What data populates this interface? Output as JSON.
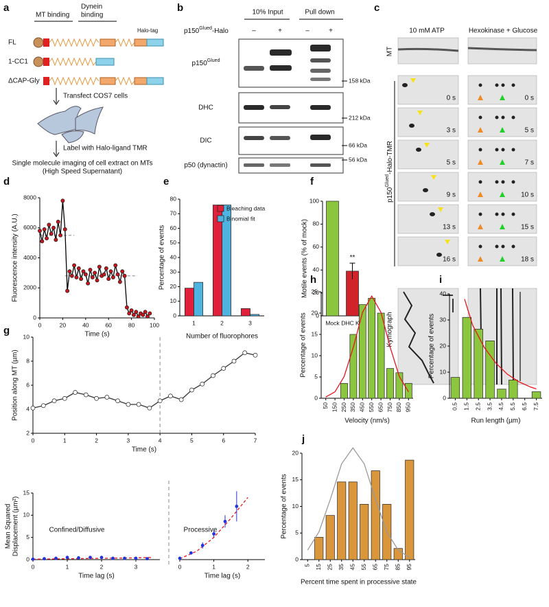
{
  "panel_labels": [
    "a",
    "b",
    "c",
    "d",
    "e",
    "f",
    "g",
    "h",
    "i",
    "j"
  ],
  "panel_a": {
    "mt_binding": "MT binding",
    "dynein_binding": [
      "Dynein",
      "binding"
    ],
    "tag": "Halo-tag",
    "constructs": [
      "FL",
      "1-CC1",
      "ΔCAP-Gly"
    ],
    "steps": [
      "Transfect COS7 cells",
      "Label with Halo-ligand TMR"
    ],
    "result": [
      "Single molecule  imaging of cell extract on MTs",
      "(High Speed Supernatant)"
    ]
  },
  "panel_b": {
    "columns": [
      "10% Input",
      "Pull down"
    ],
    "row_header": {
      "base": "p150",
      "sup": "Glued",
      "rest": "-Halo"
    },
    "signs": [
      "–",
      "+",
      "–",
      "+"
    ],
    "blots": [
      {
        "base": "p150",
        "sup": "Glued"
      },
      {
        "base": "DHC"
      },
      {
        "base": "DIC"
      },
      {
        "base": "p50 (dynactin)"
      }
    ],
    "markers": [
      "158 kDa",
      "212 kDa",
      "66 kDa",
      "56 kDa"
    ]
  },
  "panel_c": {
    "conditions": [
      "10 mM ATP",
      "Hexokinase + Glucose"
    ],
    "row_labels": [
      "MT",
      "Kymograph"
    ],
    "side_label": {
      "base": "p150",
      "sup": "Glued",
      "rest": "-Halo-TMR"
    },
    "times": [
      [
        "0 s",
        "3 s",
        "5 s",
        "9 s",
        "13 s",
        "16 s"
      ],
      [
        "0 s",
        "5 s",
        "7 s",
        "10 s",
        "15 s",
        "18 s"
      ]
    ]
  },
  "chart_data": [
    {
      "type": "line",
      "color": "#c4161c",
      "line_color": "#000000",
      "marker": "filled",
      "x": [
        0,
        2,
        4,
        6,
        8,
        10,
        12,
        14,
        16,
        18,
        20,
        22,
        24,
        26,
        28,
        30,
        32,
        34,
        36,
        38,
        40,
        42,
        44,
        46,
        48,
        50,
        52,
        54,
        56,
        58,
        60,
        62,
        64,
        66,
        68,
        70,
        72,
        74,
        76,
        78,
        80,
        82,
        84,
        86,
        88,
        90,
        92,
        94,
        96
      ],
      "values": [
        5800,
        5100,
        5900,
        5300,
        6200,
        5600,
        6000,
        5200,
        6400,
        5500,
        7800,
        5900,
        1800,
        3100,
        2800,
        3500,
        2700,
        3300,
        2600,
        3100,
        2900,
        2300,
        3200,
        2700,
        3000,
        2500,
        3400,
        2800,
        2900,
        3300,
        2600,
        3100,
        2700,
        3500,
        2900,
        2400,
        3100,
        2800,
        700,
        300,
        500,
        200,
        400,
        100,
        300,
        200,
        400,
        100,
        300
      ],
      "levels": [
        {
          "from": 0,
          "to": 30,
          "value": 5500
        },
        {
          "from": 22,
          "to": 85,
          "value": 2800
        }
      ],
      "xlim": [
        0,
        100
      ],
      "ylim": [
        0,
        8000
      ],
      "xticks": [
        0,
        20,
        40,
        60,
        80,
        100
      ],
      "yticks": [
        0,
        2000,
        4000,
        6000,
        8000
      ],
      "xlabel": "Time (s)",
      "ylabel": "Fluorescence intensity (A.U.)"
    },
    {
      "type": "bar",
      "categories": [
        "1",
        "2",
        "3"
      ],
      "series": [
        {
          "name": "Bleaching data",
          "color": "#e0203a",
          "values": [
            19,
            76,
            5
          ]
        },
        {
          "name": "Binomial fit",
          "color": "#4fb3e0",
          "values": [
            23,
            76,
            1
          ]
        }
      ],
      "legend": "upper-right",
      "ylim": [
        0,
        80
      ],
      "yticks": [
        0,
        10,
        20,
        30,
        40,
        50,
        60,
        70,
        80
      ],
      "xlabel": "Number of fluorophores",
      "ylabel": "Percentage of events"
    },
    {
      "type": "bar",
      "categories": [
        "Mock",
        "DHC KD"
      ],
      "values": [
        100,
        39
      ],
      "errors": [
        null,
        7
      ],
      "colors": [
        "#8cc63f",
        "#d1232a"
      ],
      "annotations": [
        "**"
      ],
      "ylim": [
        0,
        100
      ],
      "yticks": [
        0,
        20,
        40,
        60,
        80,
        100
      ],
      "ylabel": "Motile events (% of mock)"
    },
    {
      "type": "line",
      "color": "#ffffff",
      "line_color": "#333333",
      "marker": "open",
      "x": [
        0,
        0.33,
        0.67,
        1,
        1.33,
        1.67,
        2,
        2.33,
        2.67,
        3,
        3.33,
        3.67,
        4,
        4.33,
        4.67,
        5,
        5.33,
        5.67,
        6,
        6.33,
        6.67,
        7
      ],
      "values": [
        4.1,
        4.3,
        4.7,
        4.9,
        5.4,
        5.2,
        4.9,
        5.0,
        4.7,
        4.4,
        4.4,
        4.1,
        4.7,
        5.1,
        4.8,
        5.6,
        6.1,
        6.8,
        7.4,
        8.0,
        8.7,
        8.5
      ],
      "vline": 4,
      "xlim": [
        0,
        7
      ],
      "ylim": [
        2,
        10
      ],
      "xticks": [
        0,
        1,
        2,
        3,
        4,
        5,
        6,
        7
      ],
      "yticks": [
        2,
        4,
        6,
        8,
        10
      ],
      "xlabel": "Time (s)",
      "ylabel": "Position along MT (µm)"
    },
    {
      "type": "errorbar",
      "title": "Confined/Diffusive",
      "color": "#2233dd",
      "x": [
        0,
        0.33,
        0.67,
        1,
        1.33,
        1.67,
        2,
        2.33,
        2.67,
        3,
        3.33
      ],
      "values": [
        0.1,
        0.2,
        0.3,
        0.5,
        0.4,
        0.5,
        0.5,
        0.3,
        0.3,
        0.3,
        0.2
      ],
      "errors": [
        0.1,
        0.1,
        0.2,
        0.2,
        0.2,
        0.2,
        0.2,
        0.1,
        0.1,
        0.1,
        0.1
      ],
      "fit": {
        "x": [
          0,
          1,
          2,
          3,
          3.5
        ],
        "values": [
          0.1,
          0.2,
          0.3,
          0.4,
          0.5
        ],
        "color": "#e8141b",
        "style": "dashed"
      },
      "xlim": [
        0,
        3.7
      ],
      "ylim": [
        0,
        15
      ],
      "xticks": [
        0,
        1,
        2,
        3
      ],
      "yticks": [
        0,
        5,
        10,
        15
      ],
      "xlabel": "Time lag (s)",
      "ylabel": [
        "Mean Squared",
        "Displacement (µm²)"
      ]
    },
    {
      "type": "errorbar",
      "title": "Processive",
      "color": "#2233dd",
      "x": [
        0,
        0.33,
        0.67,
        1,
        1.33,
        1.67
      ],
      "values": [
        0.3,
        1.5,
        3.2,
        5.8,
        8.6,
        12
      ],
      "errors": [
        0.1,
        0.3,
        0.7,
        0.8,
        1.4,
        3.4
      ],
      "fit": {
        "x": [
          0,
          0.5,
          1,
          1.5,
          2
        ],
        "values": [
          0.2,
          1.9,
          5,
          9.3,
          14
        ],
        "color": "#e8141b",
        "style": "dashed"
      },
      "xlim": [
        0,
        2.5
      ],
      "ylim": [
        0,
        15
      ],
      "xticks": [
        0,
        1,
        2
      ],
      "xlabel": "Time lag (s)"
    },
    {
      "type": "bar",
      "color": "#8cc63f",
      "x": [
        250,
        350,
        450,
        550,
        650,
        750,
        850,
        950
      ],
      "values": [
        3.5,
        15,
        22,
        23.5,
        20,
        7,
        6,
        3.5
      ],
      "fit": {
        "x": [
          50,
          150,
          250,
          350,
          450,
          550,
          650,
          750,
          850,
          950
        ],
        "values": [
          0.3,
          1.5,
          5.1,
          12,
          20.2,
          24,
          20.2,
          12,
          5.1,
          1.5
        ],
        "color": "#e8141b"
      },
      "xlim": [
        0,
        1000
      ],
      "ylim": [
        0,
        25
      ],
      "xticks": [
        50,
        150,
        250,
        350,
        450,
        550,
        650,
        750,
        850,
        950
      ],
      "yticks": [
        0,
        5,
        10,
        15,
        20,
        25
      ],
      "xlabel": "Velocity (nm/s)",
      "ylabel": "Percentage of events"
    },
    {
      "type": "bar",
      "color": "#8cc63f",
      "x": [
        0.5,
        1.5,
        2.5,
        3.5,
        4.5,
        5.5,
        7.5
      ],
      "values": [
        8,
        31,
        26.5,
        22,
        3.5,
        7,
        2.5
      ],
      "fit": {
        "x": [
          1.3,
          2,
          3,
          4,
          5,
          6,
          7,
          7.5
        ],
        "values": [
          38,
          28,
          19.5,
          13.5,
          9.2,
          6.3,
          4.3,
          3.6
        ],
        "color": "#e8141b"
      },
      "xlim": [
        0,
        8
      ],
      "ylim": [
        0,
        40
      ],
      "xticks": [
        0.5,
        1.5,
        2.5,
        3.5,
        4.5,
        5.5,
        6.5,
        7.5
      ],
      "yticks": [
        0,
        10,
        20,
        30,
        40
      ],
      "xlabel": "Run length (µm)",
      "ylabel": "Percentage of events"
    },
    {
      "type": "bar",
      "color": "#d9963a",
      "x": [
        15,
        25,
        35,
        45,
        55,
        65,
        75,
        85,
        95
      ],
      "values": [
        4.2,
        8.3,
        14.6,
        14.6,
        10.4,
        16.7,
        10.4,
        2.1,
        18.7
      ],
      "fit": {
        "x": [
          5,
          15,
          25,
          35,
          45,
          55,
          65,
          75,
          85,
          95
        ],
        "values": [
          1.8,
          5.2,
          11.3,
          18,
          21,
          18,
          11.3,
          5.2,
          1.8,
          0.4
        ],
        "color": "#999999"
      },
      "xlim": [
        0,
        100
      ],
      "ylim": [
        0,
        20
      ],
      "xticks": [
        5,
        15,
        25,
        35,
        45,
        55,
        65,
        75,
        85,
        95
      ],
      "yticks": [
        0,
        5,
        10,
        15,
        20
      ],
      "xlabel": "Percent time spent in processive state",
      "ylabel": "Percentage of events"
    }
  ]
}
